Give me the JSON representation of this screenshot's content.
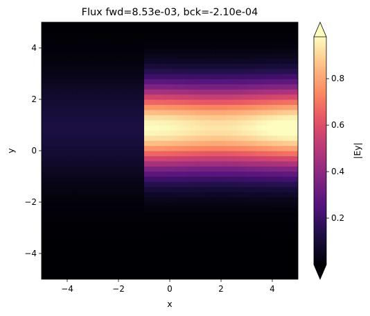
{
  "chart_data": {
    "type": "heatmap",
    "title": "Flux fwd=8.53e-03, bck=-2.10e-04",
    "xlabel": "x",
    "ylabel": "y",
    "xlim": [
      -5,
      5
    ],
    "ylim": [
      -5,
      5
    ],
    "x_ticks": [
      -4,
      -2,
      0,
      2,
      4
    ],
    "y_ticks": [
      -4,
      -2,
      0,
      2,
      4
    ],
    "x_tick_labels": [
      "−4",
      "−2",
      "0",
      "2",
      "4"
    ],
    "y_tick_labels": [
      "−4",
      "−2",
      "0",
      "2",
      "4"
    ],
    "grid": false,
    "colormap": "magma",
    "colorbar": {
      "label": "|Ey|",
      "extend": "both",
      "range": [
        0.0,
        0.98
      ],
      "ticks": [
        0.2,
        0.4,
        0.6,
        0.8
      ],
      "tick_labels": [
        "0.2",
        "0.4",
        "0.6",
        "0.8"
      ]
    },
    "field": {
      "grid_nx": 50,
      "grid_ny": 50,
      "discontinuity_x": -0.95,
      "beam_center_y": 0.9,
      "beam_width_right": 1.6,
      "peak_right": 0.98,
      "beam_width_left": 2.0,
      "peak_left": 0.12
    }
  }
}
